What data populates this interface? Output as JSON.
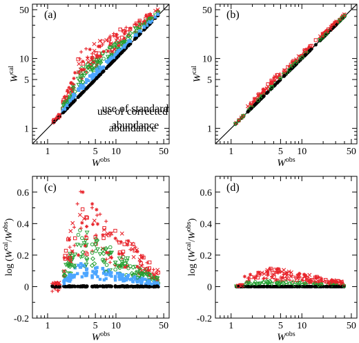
{
  "chart_data": [
    {
      "panel": "(a)",
      "type": "scatter",
      "title": "",
      "annotation": [
        "use of standard",
        "abundance"
      ],
      "xlabel": {
        "base": "W",
        "sup": "obs"
      },
      "ylabel": {
        "base": "W",
        "sup": "cal"
      },
      "xscale": "log",
      "yscale": "log",
      "xlim": [
        0.6,
        60
      ],
      "ylim": [
        0.6,
        60
      ],
      "xticks": [
        1,
        5,
        10,
        50
      ],
      "yticks": [
        1,
        5,
        10,
        50
      ],
      "diagonal": true,
      "series_colors": {
        "red": "#e8242b",
        "green": "#22a030",
        "blue": "#4da6ff",
        "black": "#000000"
      }
    },
    {
      "panel": "(b)",
      "type": "scatter",
      "title": "",
      "annotation": [
        "use of corrected",
        "abundance"
      ],
      "xlabel": {
        "base": "W",
        "sup": "obs"
      },
      "ylabel": {
        "base": "W",
        "sup": "cal"
      },
      "xscale": "log",
      "yscale": "log",
      "xlim": [
        0.6,
        60
      ],
      "ylim": [
        0.6,
        60
      ],
      "xticks": [
        1,
        5,
        10,
        50
      ],
      "yticks": [
        1,
        5,
        10,
        50
      ],
      "diagonal": true
    },
    {
      "panel": "(c)",
      "type": "scatter",
      "title": "",
      "xlabel": {
        "base": "W",
        "sup": "obs"
      },
      "ylabel": {
        "pre": "log (",
        "base1": "W",
        "sup1": "cal",
        "mid": "/",
        "base2": "W",
        "sup2": "obs",
        "post": ")"
      },
      "xscale": "log",
      "yscale": "linear",
      "xlim": [
        0.6,
        60
      ],
      "ylim": [
        -0.2,
        0.7
      ],
      "xticks": [
        1,
        5,
        10,
        50
      ],
      "yticks": [
        -0.2,
        0,
        0.2,
        0.4,
        0.6
      ],
      "ytick_labels": [
        "-0.2",
        "0",
        "0.2",
        "0.4",
        "0.6"
      ]
    },
    {
      "panel": "(d)",
      "type": "scatter",
      "title": "",
      "xlabel": {
        "base": "W",
        "sup": "obs"
      },
      "ylabel": {
        "pre": "log (",
        "base1": "W",
        "sup1": "cal",
        "mid": "/",
        "base2": "W",
        "sup2": "obs",
        "post": ")"
      },
      "xscale": "log",
      "yscale": "linear",
      "xlim": [
        0.6,
        60
      ],
      "ylim": [
        -0.2,
        0.7
      ],
      "xticks": [
        1,
        5,
        10,
        50
      ],
      "yticks": [
        -0.2,
        0,
        0.2,
        0.4,
        0.6
      ],
      "ytick_labels": [
        "-0.2",
        "0",
        "0.2",
        "0.4",
        "0.6"
      ]
    }
  ]
}
